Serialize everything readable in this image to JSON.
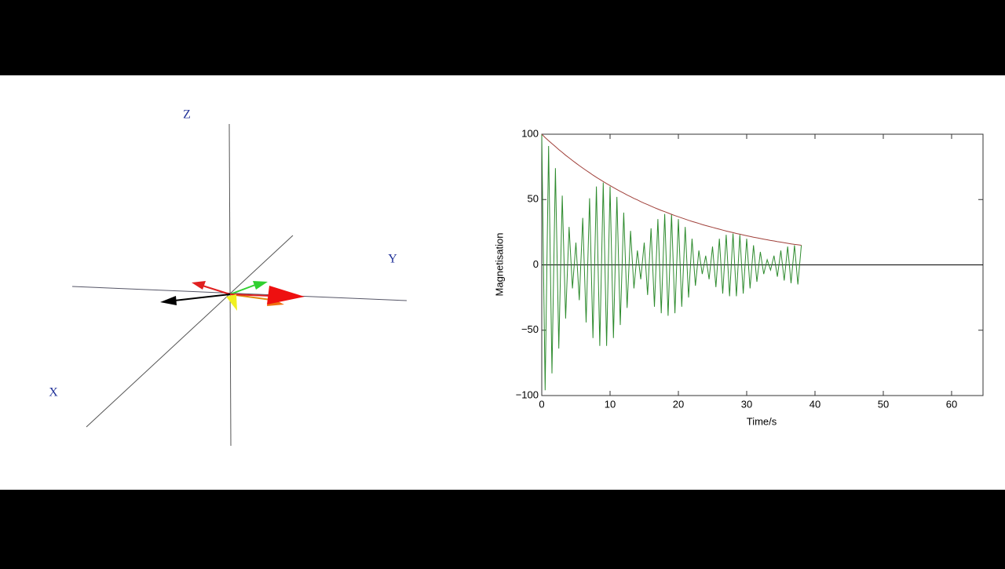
{
  "diagram": {
    "axis_labels": {
      "x": "X",
      "y": "Y",
      "z": "Z"
    }
  },
  "chart_data": {
    "type": "line",
    "xlabel": "Time/s",
    "ylabel": "Magnetisation",
    "xlim": [
      0,
      64.6
    ],
    "ylim": [
      -100,
      100
    ],
    "xticks": [
      0,
      10,
      20,
      30,
      40,
      50,
      60
    ],
    "yticks": [
      {
        "value": -100,
        "label": "−100"
      },
      {
        "value": -50,
        "label": "−50"
      },
      0,
      50,
      100
    ],
    "grid": false,
    "x": [
      0,
      0.5,
      1,
      1.5,
      2,
      2.5,
      3,
      3.5,
      4,
      4.5,
      5,
      5.5,
      6,
      6.5,
      7,
      7.5,
      8,
      8.5,
      9,
      9.5,
      10,
      10.5,
      11,
      11.5,
      12,
      12.5,
      13,
      13.5,
      14,
      14.5,
      15,
      15.5,
      16,
      16.5,
      17,
      17.5,
      18,
      18.5,
      19,
      19.5,
      20,
      20.5,
      21,
      21.5,
      22,
      22.5,
      23,
      23.5,
      24,
      24.5,
      25,
      25.5,
      26,
      26.5,
      27,
      27.5,
      28,
      28.5,
      29,
      29.5,
      30,
      30.5,
      31,
      31.5,
      32,
      32.5,
      33,
      33.5,
      34,
      34.5,
      35,
      35.5,
      36,
      36.5,
      37,
      37.5,
      38
    ],
    "series": [
      {
        "color": "#2e8b2e",
        "values": [
          100,
          -96,
          91,
          -83,
          74,
          -64,
          53,
          -41,
          29,
          -18,
          17,
          -27,
          36,
          -44,
          51,
          -56,
          60,
          -62,
          63,
          -62,
          60,
          -56,
          52,
          -46,
          40,
          -33,
          26,
          -18,
          11,
          -11,
          17,
          -23,
          28,
          -32,
          35,
          -37,
          39,
          -39,
          39,
          -37,
          35,
          -32,
          29,
          -25,
          20,
          -16,
          11,
          -7,
          7,
          -11,
          14,
          -17,
          20,
          -22,
          23,
          -24,
          24,
          -24,
          23,
          -22,
          20,
          -18,
          15,
          -13,
          10,
          -7,
          4,
          -4,
          7,
          -9,
          11,
          -12,
          14,
          -14,
          15,
          -15,
          15
        ]
      },
      {
        "color": "#a0403a",
        "values": [
          100,
          97.5,
          95.1,
          92.8,
          90.5,
          88.2,
          86.1,
          83.9,
          81.9,
          79.9,
          77.9,
          76.0,
          74.1,
          72.3,
          70.5,
          68.7,
          67.0,
          65.4,
          63.8,
          62.2,
          60.7,
          59.2,
          57.7,
          56.3,
          54.9,
          53.5,
          52.2,
          50.9,
          49.7,
          48.4,
          47.2,
          46.1,
          44.9,
          43.8,
          42.7,
          41.7,
          40.7,
          39.7,
          38.7,
          37.7,
          36.8,
          35.9,
          35.0,
          34.1,
          33.3,
          32.5,
          31.7,
          30.9,
          30.1,
          29.4,
          28.7,
          28.0,
          27.3,
          26.6,
          25.9,
          25.3,
          24.7,
          24.0,
          23.5,
          22.9,
          22.3,
          21.8,
          21.2,
          20.7,
          20.2,
          19.7,
          19.2,
          18.7,
          18.3,
          17.8,
          17.4,
          17.0,
          16.5,
          16.1,
          15.7,
          15.4,
          15.0
        ]
      }
    ]
  }
}
